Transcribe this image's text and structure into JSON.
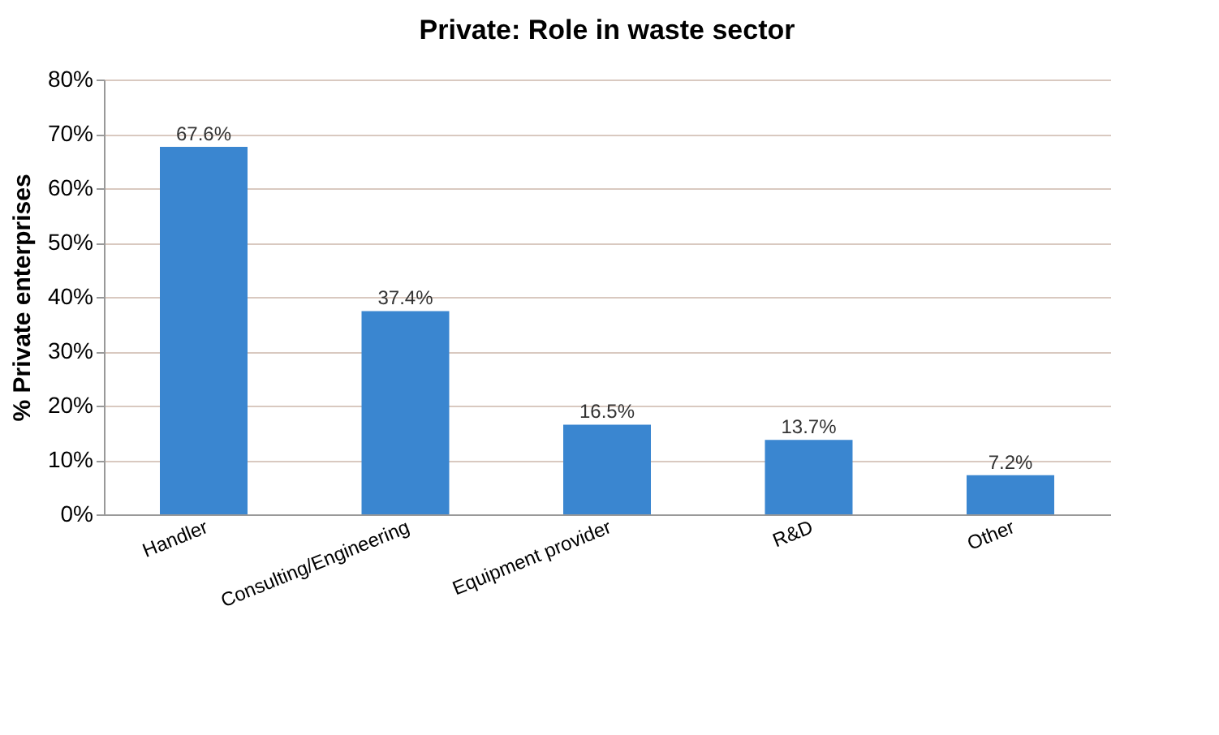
{
  "chart_data": {
    "type": "bar",
    "title": "Private: Role in waste sector",
    "ylabel": "% Private enterprises",
    "categories": [
      "Handler",
      "Consulting/Engineering",
      "Equipment provider",
      "R&D",
      "Other"
    ],
    "values": [
      67.6,
      37.4,
      16.5,
      13.7,
      7.2
    ],
    "color": "#3a86d0",
    "value_labels": [
      "67.6%",
      "37.4%",
      "16.5%",
      "13.7%",
      "7.2%"
    ],
    "ylim": [
      0,
      80
    ],
    "yticks": [
      {
        "value": 0,
        "label": "0%"
      },
      {
        "value": 10,
        "label": "10%"
      },
      {
        "value": 20,
        "label": "20%"
      },
      {
        "value": 30,
        "label": "30%"
      },
      {
        "value": 40,
        "label": "40%"
      },
      {
        "value": 50,
        "label": "50%"
      },
      {
        "value": 60,
        "label": "60%"
      },
      {
        "value": 70,
        "label": "70%"
      },
      {
        "value": 80,
        "label": "80%"
      }
    ],
    "grid": "y"
  }
}
